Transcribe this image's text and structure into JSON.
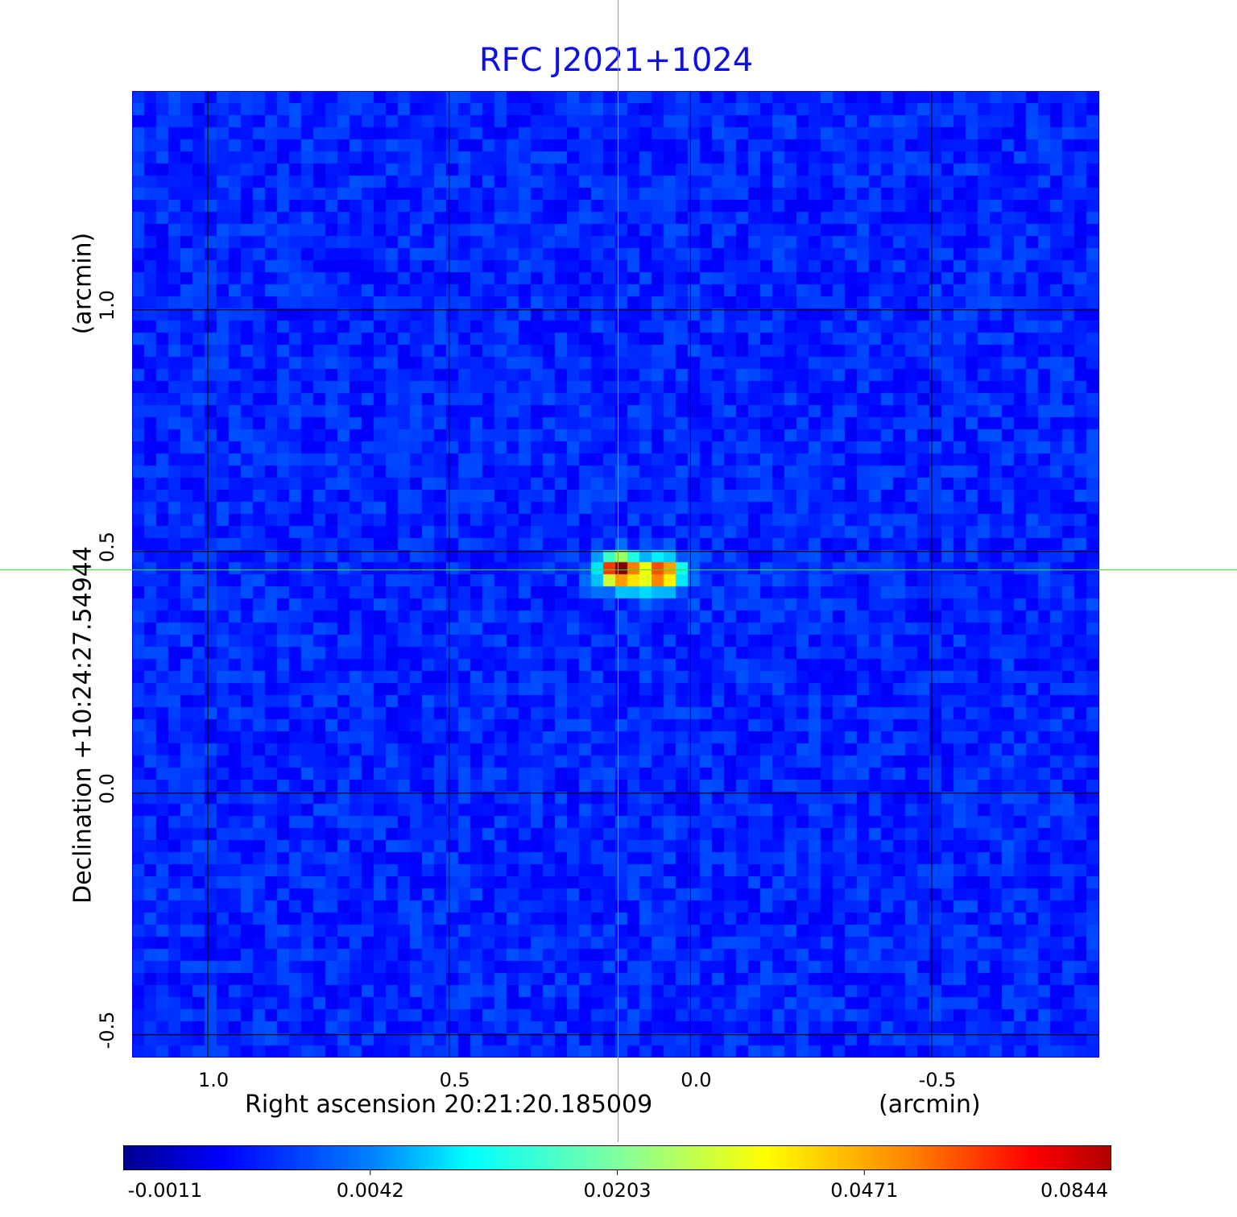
{
  "chart_data": {
    "type": "heatmap",
    "title": "RFC J2021+1024",
    "xlabel": "Right ascension  20:21:20.185009",
    "xunit": "(arcmin)",
    "ylabel": "Declination  +10:24:27.54944",
    "yunit": "(arcmin)",
    "xlim": [
      1.157,
      -0.847
    ],
    "ylim": [
      -0.547,
      1.453
    ],
    "xticks": [
      1.0,
      0.5,
      0.0,
      -0.5
    ],
    "xtick_labels": [
      "1.0",
      "0.5",
      "0.0",
      "-0.5"
    ],
    "yticks": [
      1.0,
      0.5,
      0.0,
      -0.5
    ],
    "ytick_labels": [
      "1.0",
      "0.5",
      "0.0",
      "-0.5"
    ],
    "grid": true,
    "crosshair": {
      "x": 0.15,
      "y": 0.462
    },
    "sources": [
      {
        "x": 0.15,
        "y": 0.462,
        "value": 0.0844
      },
      {
        "x": 0.06,
        "y": 0.455,
        "value": 0.04
      }
    ],
    "colormap": "jet",
    "colorbar": {
      "range": [
        -0.0011,
        0.0844
      ],
      "ticks": [
        -0.0011,
        0.0042,
        0.0203,
        0.0471,
        0.0844
      ],
      "tick_labels": [
        "-0.0011",
        "0.0042",
        "0.0203",
        "0.0471",
        "0.0844"
      ]
    }
  }
}
